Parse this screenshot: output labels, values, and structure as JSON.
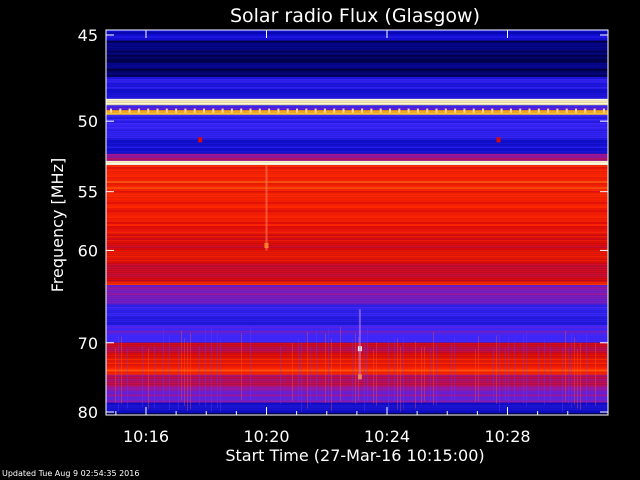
{
  "chart_data": {
    "type": "heatmap",
    "title": "Solar radio Flux (Glasgow)",
    "xlabel": "Start Time (27-Mar-16 10:15:00)",
    "ylabel": "Frequency [MHz]",
    "x_range_minutes": [
      10.25,
      14.9
    ],
    "x_ticks": [
      {
        "label": "10:16",
        "value": 16
      },
      {
        "label": "10:20",
        "value": 20
      },
      {
        "label": "10:24",
        "value": 24
      },
      {
        "label": "10:28",
        "value": 28
      }
    ],
    "ylim": [
      45,
      80
    ],
    "y_ticks": [
      45,
      50,
      55,
      60,
      70,
      80
    ],
    "y_scale": "reciprocal",
    "bands": [
      {
        "f0": 44.6,
        "f1": 45.3,
        "level": 0.15
      },
      {
        "f0": 45.3,
        "f1": 47.3,
        "level": 0.05
      },
      {
        "f0": 47.3,
        "f1": 48.6,
        "level": 0.22
      },
      {
        "f0": 48.6,
        "f1": 49.0,
        "level": 0.96
      },
      {
        "f0": 49.0,
        "f1": 49.3,
        "level": 0.3
      },
      {
        "f0": 49.3,
        "f1": 49.6,
        "level": 0.85
      },
      {
        "f0": 49.6,
        "f1": 51.0,
        "level": 0.28
      },
      {
        "f0": 51.0,
        "f1": 52.2,
        "level": 0.22
      },
      {
        "f0": 52.2,
        "f1": 52.7,
        "level": 0.45
      },
      {
        "f0": 52.7,
        "f1": 53.0,
        "level": 0.97
      },
      {
        "f0": 53.0,
        "f1": 55.5,
        "level": 0.7
      },
      {
        "f0": 55.5,
        "f1": 58.5,
        "level": 0.66
      },
      {
        "f0": 58.5,
        "f1": 61.5,
        "level": 0.62
      },
      {
        "f0": 61.5,
        "f1": 63.0,
        "level": 0.55
      },
      {
        "f0": 63.0,
        "f1": 63.4,
        "level": 0.72
      },
      {
        "f0": 63.4,
        "f1": 65.5,
        "level": 0.4
      },
      {
        "f0": 65.5,
        "f1": 68.0,
        "level": 0.25
      },
      {
        "f0": 68.0,
        "f1": 70.0,
        "level": 0.35
      },
      {
        "f0": 70.0,
        "f1": 71.5,
        "level": 0.55
      },
      {
        "f0": 71.5,
        "f1": 73.0,
        "level": 0.66
      },
      {
        "f0": 73.0,
        "f1": 74.3,
        "level": 0.7
      },
      {
        "f0": 74.3,
        "f1": 76.0,
        "level": 0.5
      },
      {
        "f0": 76.0,
        "f1": 78.5,
        "level": 0.4
      },
      {
        "f0": 78.5,
        "f1": 80.2,
        "level": 0.18
      }
    ],
    "annotations_bright": [
      {
        "minute": 20.0,
        "f": 59.5,
        "level": 0.8
      },
      {
        "minute": 23.1,
        "f": 70.7,
        "level": 0.98
      },
      {
        "minute": 23.1,
        "f": 74.5,
        "level": 0.8
      },
      {
        "minute": 17.8,
        "f": 51.2,
        "level": 0.6
      },
      {
        "minute": 27.7,
        "f": 51.2,
        "level": 0.6
      }
    ]
  },
  "footer": "Updated Tue Aug  9 02:54:35 2016"
}
